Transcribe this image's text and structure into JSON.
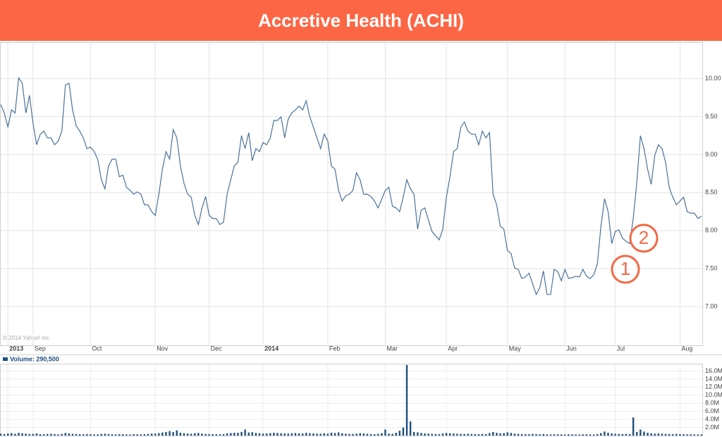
{
  "chart_data": [
    {
      "type": "line",
      "title": "Accretive Health (ACHI)",
      "credit": "© 2014 Yahoo! Inc.",
      "color": "#4a7299",
      "grid": true,
      "categories": [
        null,
        null,
        "2013",
        null,
        null,
        null,
        null,
        null,
        null,
        "Sep",
        null,
        null,
        null,
        null,
        null,
        null,
        null,
        null,
        null,
        null,
        null,
        null,
        null,
        null,
        null,
        "Oct",
        null,
        null,
        null,
        null,
        null,
        null,
        null,
        null,
        null,
        null,
        null,
        null,
        null,
        null,
        null,
        null,
        null,
        "Nov",
        null,
        null,
        null,
        null,
        null,
        null,
        null,
        null,
        null,
        null,
        null,
        null,
        null,
        null,
        "Dec",
        null,
        null,
        null,
        null,
        null,
        null,
        null,
        null,
        null,
        null,
        null,
        null,
        null,
        null,
        "2014",
        null,
        null,
        null,
        null,
        null,
        null,
        null,
        null,
        null,
        null,
        null,
        null,
        null,
        null,
        null,
        null,
        null,
        "Feb",
        null,
        null,
        null,
        null,
        null,
        null,
        null,
        null,
        null,
        null,
        null,
        null,
        null,
        null,
        null,
        "Mar",
        null,
        null,
        null,
        null,
        null,
        null,
        null,
        null,
        null,
        null,
        null,
        null,
        null,
        null,
        null,
        null,
        "Apr",
        null,
        null,
        null,
        null,
        null,
        null,
        null,
        null,
        null,
        null,
        null,
        null,
        null,
        null,
        null,
        null,
        "May",
        null,
        null,
        null,
        null,
        null,
        null,
        null,
        null,
        null,
        null,
        null,
        null,
        null,
        null,
        null,
        "Jun",
        null,
        null,
        null,
        null,
        null,
        null,
        null,
        null,
        null,
        null,
        null,
        null,
        null,
        "Jul",
        null,
        null,
        null,
        null,
        null,
        null,
        null,
        null,
        null,
        null,
        null,
        null,
        null,
        null,
        null,
        null,
        null,
        "Aug",
        null,
        null,
        null,
        null,
        null,
        null
      ],
      "values": [
        9.66,
        9.55,
        9.36,
        9.59,
        9.55,
        10.01,
        9.94,
        9.55,
        9.78,
        9.41,
        9.13,
        9.27,
        9.31,
        9.22,
        9.22,
        9.13,
        9.18,
        9.31,
        9.92,
        9.94,
        9.59,
        9.38,
        9.31,
        9.22,
        9.08,
        9.1,
        9.04,
        8.94,
        8.67,
        8.55,
        8.85,
        8.94,
        8.94,
        8.71,
        8.73,
        8.57,
        8.53,
        8.48,
        8.51,
        8.48,
        8.34,
        8.34,
        8.25,
        8.2,
        8.48,
        8.81,
        9.04,
        8.94,
        9.33,
        9.22,
        8.85,
        8.62,
        8.48,
        8.44,
        8.2,
        8.08,
        8.3,
        8.45,
        8.2,
        8.16,
        8.16,
        8.08,
        8.11,
        8.48,
        8.67,
        8.85,
        8.9,
        9.25,
        9.08,
        9.29,
        8.92,
        9.08,
        9.04,
        9.16,
        9.13,
        9.22,
        9.45,
        9.45,
        9.5,
        9.22,
        9.47,
        9.55,
        9.59,
        9.64,
        9.59,
        9.71,
        9.5,
        9.36,
        9.22,
        9.08,
        9.27,
        9.18,
        8.85,
        8.81,
        8.53,
        8.39,
        8.46,
        8.48,
        8.53,
        8.76,
        8.67,
        8.48,
        8.48,
        8.45,
        8.39,
        8.3,
        8.41,
        8.53,
        8.57,
        8.32,
        8.3,
        8.25,
        8.44,
        8.67,
        8.55,
        8.48,
        8.02,
        8.27,
        8.3,
        8.14,
        7.99,
        7.93,
        7.88,
        8.02,
        8.44,
        8.71,
        9.04,
        9.08,
        9.36,
        9.43,
        9.31,
        9.27,
        9.27,
        9.13,
        9.31,
        9.22,
        9.29,
        8.48,
        8.34,
        8.06,
        8.02,
        7.74,
        7.7,
        7.51,
        7.49,
        7.37,
        7.39,
        7.44,
        7.3,
        7.16,
        7.25,
        7.47,
        7.16,
        7.16,
        7.49,
        7.46,
        7.34,
        7.49,
        7.37,
        7.38,
        7.4,
        7.39,
        7.49,
        7.4,
        7.37,
        7.42,
        7.56,
        8.06,
        8.42,
        8.25,
        7.83,
        7.99,
        8.01,
        7.9,
        7.86,
        7.83,
        8.16,
        8.64,
        9.25,
        9.08,
        8.81,
        8.61,
        8.99,
        9.13,
        9.08,
        8.9,
        8.57,
        8.44,
        8.34,
        8.39,
        8.44,
        8.25,
        8.23,
        8.23,
        8.16,
        8.19
      ],
      "ylim": [
        6.49,
        10.47
      ],
      "yticks": [
        {
          "value": 7,
          "label": "7.00"
        },
        {
          "value": 7.5,
          "label": "7.50"
        },
        {
          "value": 8,
          "label": "8.00"
        },
        {
          "value": 8.5,
          "label": "8.50"
        },
        {
          "value": 9,
          "label": "9.00"
        },
        {
          "value": 9.5,
          "label": "9.50"
        },
        {
          "value": 10,
          "label": "10.00"
        }
      ],
      "annotations": [
        "1",
        "2"
      ]
    },
    {
      "type": "bar",
      "legend_label": "Volume: 290,500",
      "color": "#1d4f80",
      "values": [
        450000,
        380000,
        520000,
        610000,
        430000,
        700000,
        560000,
        480000,
        390000,
        420000,
        510000,
        360000,
        330000,
        400000,
        450000,
        380000,
        300000,
        420000,
        650000,
        520000,
        430000,
        390000,
        350000,
        310000,
        370000,
        340000,
        280000,
        300000,
        410000,
        460000,
        380000,
        330000,
        290000,
        350000,
        320000,
        300000,
        270000,
        340000,
        310000,
        290000,
        360000,
        420000,
        500000,
        480000,
        620000,
        750000,
        900000,
        1100000,
        850000,
        1300000,
        700000,
        600000,
        520000,
        450000,
        580000,
        640000,
        480000,
        400000,
        380000,
        350000,
        330000,
        310000,
        360000,
        550000,
        620000,
        700000,
        680000,
        900000,
        1500000,
        750000,
        820000,
        640000,
        560000,
        480000,
        520000,
        600000,
        700000,
        650000,
        580000,
        520000,
        480000,
        560000,
        620000,
        540000,
        500000,
        680000,
        590000,
        520000,
        470000,
        440000,
        560000,
        480000,
        720000,
        640000,
        780000,
        560000,
        450000,
        420000,
        400000,
        460000,
        600000,
        510000,
        430000,
        380000,
        360000,
        410000,
        600000,
        1500000,
        500000,
        440000,
        700000,
        1200000,
        2000000,
        17500000,
        3500000,
        900000,
        800000,
        650000,
        540000,
        470000,
        420000,
        380000,
        360000,
        520000,
        640000,
        580000,
        500000,
        460000,
        420000,
        390000,
        450000,
        400000,
        370000,
        350000,
        410000,
        380000,
        620000,
        900000,
        700000,
        560000,
        600000,
        800000,
        650000,
        480000,
        420000,
        380000,
        360000,
        330000,
        400000,
        350000,
        320000,
        380000,
        300000,
        280000,
        340000,
        310000,
        290000,
        270000,
        320000,
        300000,
        280000,
        260000,
        300000,
        330000,
        290000,
        270000,
        350000,
        600000,
        1000000,
        700000,
        520000,
        460000,
        400000,
        380000,
        420000,
        360000,
        4500000,
        900000,
        1500000,
        1000000,
        700000,
        560000,
        480000,
        520000,
        460000,
        400000,
        380000,
        350000,
        420000,
        360000,
        330000,
        300000,
        310000,
        290000,
        280000,
        290500
      ],
      "ylim": [
        0,
        18000000
      ],
      "yticks": [
        {
          "value": 2000000,
          "label": "2.0M"
        },
        {
          "value": 4000000,
          "label": "4.0M"
        },
        {
          "value": 6000000,
          "label": "6.0M"
        },
        {
          "value": 8000000,
          "label": "8.0M"
        },
        {
          "value": 10000000,
          "label": "10.0M"
        },
        {
          "value": 12000000,
          "label": "12.0M"
        },
        {
          "value": 14000000,
          "label": "14.0M"
        },
        {
          "value": 16000000,
          "label": "16.0M"
        }
      ]
    }
  ]
}
